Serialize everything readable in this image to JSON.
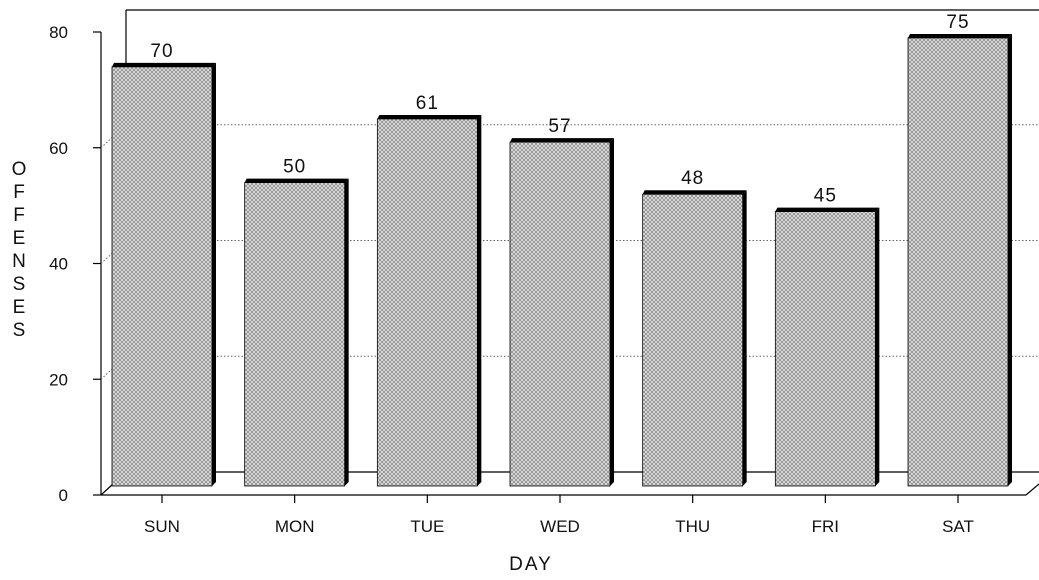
{
  "chart_data": {
    "type": "bar",
    "categories": [
      "SUN",
      "MON",
      "TUE",
      "WED",
      "THU",
      "FRI",
      "SAT"
    ],
    "values": [
      70,
      50,
      61,
      57,
      48,
      45,
      75
    ],
    "ylabel": "OFFENSES",
    "xlabel": "DAY",
    "ylim": [
      0,
      80
    ],
    "yticks": [
      0,
      20,
      40,
      60,
      80
    ],
    "grid": true,
    "style": "3d-patterned"
  }
}
